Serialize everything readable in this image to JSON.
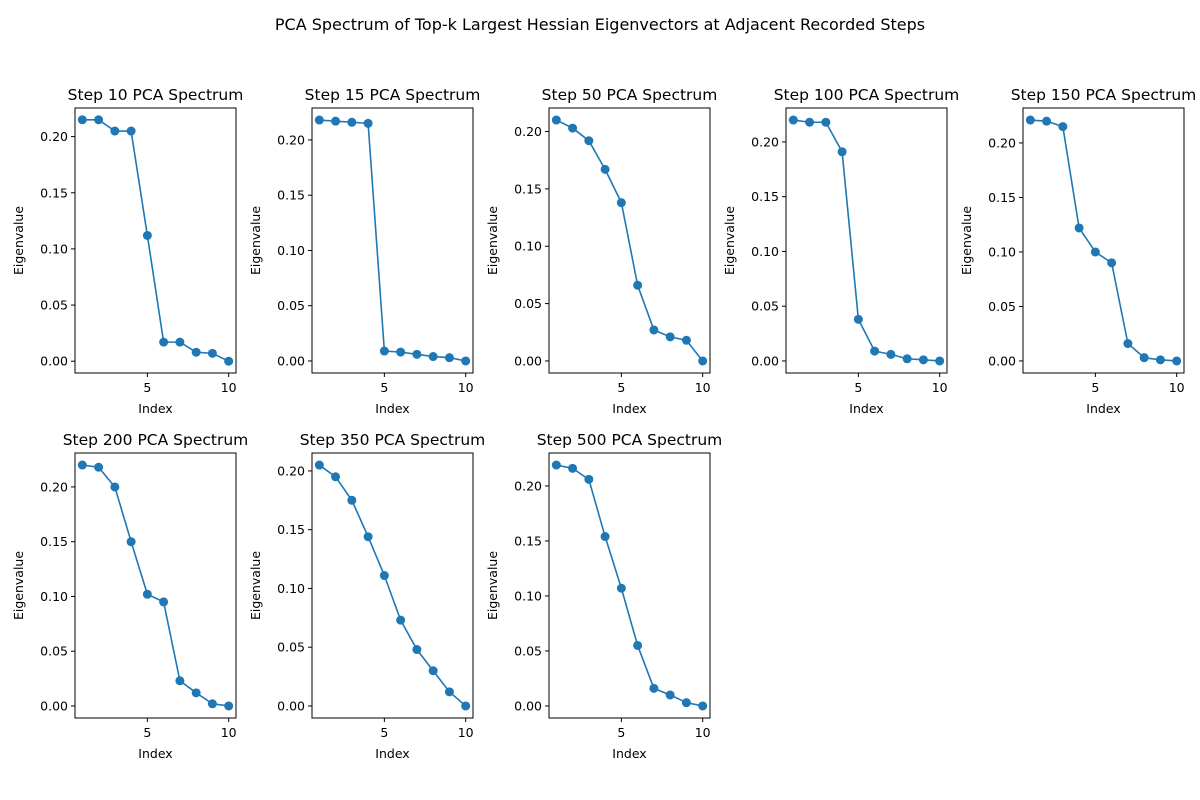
{
  "figure": {
    "title": "PCA Spectrum of Top-k Largest Hessian Eigenvectors at Adjacent Recorded Steps"
  },
  "colors": {
    "series": "#1f77b4",
    "axes": "#000000",
    "background": "#ffffff"
  },
  "chart_data": [
    {
      "type": "line",
      "title": "Step 10 PCA Spectrum",
      "xlabel": "Index",
      "ylabel": "Eigenvalue",
      "x": [
        1,
        2,
        3,
        4,
        5,
        6,
        7,
        8,
        9,
        10
      ],
      "values": [
        0.215,
        0.215,
        0.205,
        0.205,
        0.112,
        0.017,
        0.017,
        0.008,
        0.007,
        0.0
      ],
      "xlim": [
        0.55,
        10.45
      ],
      "ylim": [
        -0.0105,
        0.2255
      ],
      "xticks": [
        5,
        10
      ],
      "yticks": [
        0.0,
        0.05,
        0.1,
        0.15,
        0.2
      ],
      "xtick_labels": [
        "5",
        "10"
      ],
      "ytick_labels": [
        "0.00",
        "0.05",
        "0.10",
        "0.15",
        "0.20"
      ],
      "grid": false,
      "marker": "circle"
    },
    {
      "type": "line",
      "title": "Step 15 PCA Spectrum",
      "xlabel": "Index",
      "ylabel": "Eigenvalue",
      "x": [
        1,
        2,
        3,
        4,
        5,
        6,
        7,
        8,
        9,
        10
      ],
      "values": [
        0.218,
        0.217,
        0.216,
        0.215,
        0.009,
        0.008,
        0.006,
        0.004,
        0.003,
        0.0
      ],
      "xlim": [
        0.55,
        10.45
      ],
      "ylim": [
        -0.0109,
        0.2289
      ],
      "xticks": [
        5,
        10
      ],
      "yticks": [
        0.0,
        0.05,
        0.1,
        0.15,
        0.2
      ],
      "xtick_labels": [
        "5",
        "10"
      ],
      "ytick_labels": [
        "0.00",
        "0.05",
        "0.10",
        "0.15",
        "0.20"
      ],
      "grid": false,
      "marker": "circle"
    },
    {
      "type": "line",
      "title": "Step 50 PCA Spectrum",
      "xlabel": "Index",
      "ylabel": "Eigenvalue",
      "x": [
        1,
        2,
        3,
        4,
        5,
        6,
        7,
        8,
        9,
        10
      ],
      "values": [
        0.21,
        0.203,
        0.192,
        0.167,
        0.138,
        0.066,
        0.027,
        0.021,
        0.018,
        0.0
      ],
      "xlim": [
        0.55,
        10.45
      ],
      "ylim": [
        -0.0105,
        0.2205
      ],
      "xticks": [
        5,
        10
      ],
      "yticks": [
        0.0,
        0.05,
        0.1,
        0.15,
        0.2
      ],
      "xtick_labels": [
        "5",
        "10"
      ],
      "ytick_labels": [
        "0.00",
        "0.05",
        "0.10",
        "0.15",
        "0.20"
      ],
      "grid": false,
      "marker": "circle"
    },
    {
      "type": "line",
      "title": "Step 100 PCA Spectrum",
      "xlabel": "Index",
      "ylabel": "Eigenvalue",
      "x": [
        1,
        2,
        3,
        4,
        5,
        6,
        7,
        8,
        9,
        10
      ],
      "values": [
        0.22,
        0.218,
        0.218,
        0.191,
        0.038,
        0.009,
        0.006,
        0.002,
        0.001,
        0.0
      ],
      "xlim": [
        0.55,
        10.45
      ],
      "ylim": [
        -0.011,
        0.231
      ],
      "xticks": [
        5,
        10
      ],
      "yticks": [
        0.0,
        0.05,
        0.1,
        0.15,
        0.2
      ],
      "xtick_labels": [
        "5",
        "10"
      ],
      "ytick_labels": [
        "0.00",
        "0.05",
        "0.10",
        "0.15",
        "0.20"
      ],
      "grid": false,
      "marker": "circle"
    },
    {
      "type": "line",
      "title": "Step 150 PCA Spectrum",
      "xlabel": "Index",
      "ylabel": "Eigenvalue",
      "x": [
        1,
        2,
        3,
        4,
        5,
        6,
        7,
        8,
        9,
        10
      ],
      "values": [
        0.221,
        0.22,
        0.215,
        0.122,
        0.1,
        0.09,
        0.016,
        0.003,
        0.001,
        0.0
      ],
      "xlim": [
        0.55,
        10.45
      ],
      "ylim": [
        -0.01105,
        0.23205
      ],
      "xticks": [
        5,
        10
      ],
      "yticks": [
        0.0,
        0.05,
        0.1,
        0.15,
        0.2
      ],
      "xtick_labels": [
        "5",
        "10"
      ],
      "ytick_labels": [
        "0.00",
        "0.05",
        "0.10",
        "0.15",
        "0.20"
      ],
      "grid": false,
      "marker": "circle"
    },
    {
      "type": "line",
      "title": "Step 200 PCA Spectrum",
      "xlabel": "Index",
      "ylabel": "Eigenvalue",
      "x": [
        1,
        2,
        3,
        4,
        5,
        6,
        7,
        8,
        9,
        10
      ],
      "values": [
        0.22,
        0.218,
        0.2,
        0.15,
        0.102,
        0.095,
        0.023,
        0.012,
        0.002,
        0.0
      ],
      "xlim": [
        0.55,
        10.45
      ],
      "ylim": [
        -0.011,
        0.231
      ],
      "xticks": [
        5,
        10
      ],
      "yticks": [
        0.0,
        0.05,
        0.1,
        0.15,
        0.2
      ],
      "xtick_labels": [
        "5",
        "10"
      ],
      "ytick_labels": [
        "0.00",
        "0.05",
        "0.10",
        "0.15",
        "0.20"
      ],
      "grid": false,
      "marker": "circle"
    },
    {
      "type": "line",
      "title": "Step 350 PCA Spectrum",
      "xlabel": "Index",
      "ylabel": "Eigenvalue",
      "x": [
        1,
        2,
        3,
        4,
        5,
        6,
        7,
        8,
        9,
        10
      ],
      "values": [
        0.205,
        0.195,
        0.175,
        0.144,
        0.111,
        0.073,
        0.048,
        0.03,
        0.012,
        0.0
      ],
      "xlim": [
        0.55,
        10.45
      ],
      "ylim": [
        -0.01025,
        0.21525
      ],
      "xticks": [
        5,
        10
      ],
      "yticks": [
        0.0,
        0.05,
        0.1,
        0.15,
        0.2
      ],
      "xtick_labels": [
        "5",
        "10"
      ],
      "ytick_labels": [
        "0.00",
        "0.05",
        "0.10",
        "0.15",
        "0.20"
      ],
      "grid": false,
      "marker": "circle"
    },
    {
      "type": "line",
      "title": "Step 500 PCA Spectrum",
      "xlabel": "Index",
      "ylabel": "Eigenvalue",
      "x": [
        1,
        2,
        3,
        4,
        5,
        6,
        7,
        8,
        9,
        10
      ],
      "values": [
        0.219,
        0.216,
        0.206,
        0.154,
        0.107,
        0.055,
        0.016,
        0.01,
        0.003,
        0.0
      ],
      "xlim": [
        0.55,
        10.45
      ],
      "ylim": [
        -0.01095,
        0.22995
      ],
      "xticks": [
        5,
        10
      ],
      "yticks": [
        0.0,
        0.05,
        0.1,
        0.15,
        0.2
      ],
      "xtick_labels": [
        "5",
        "10"
      ],
      "ytick_labels": [
        "0.00",
        "0.05",
        "0.10",
        "0.15",
        "0.20"
      ],
      "grid": false,
      "marker": "circle"
    }
  ]
}
